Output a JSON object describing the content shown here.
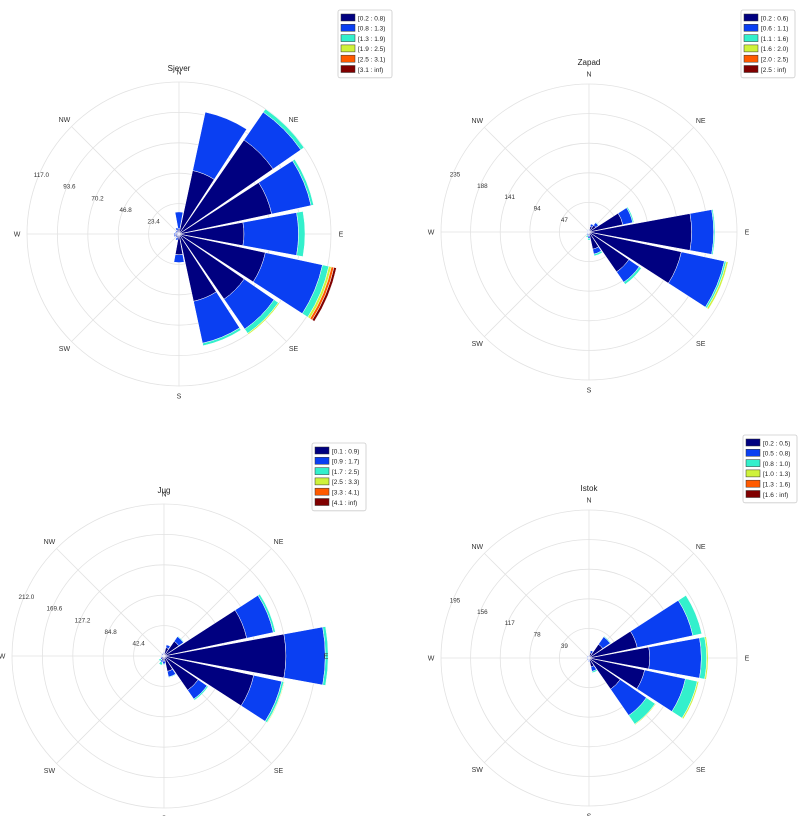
{
  "colors": {
    "bins": [
      "#000080",
      "#0a3ff2",
      "#33f0cc",
      "#cff23a",
      "#ff5a00",
      "#800000"
    ],
    "grid": "#e2e2e2"
  },
  "compass_labels": [
    "N",
    "NE",
    "E",
    "SE",
    "S",
    "SW",
    "W",
    "NW"
  ],
  "chart_data": [
    {
      "type": "windrose",
      "title": "Sjever",
      "direction_labels": [
        "N",
        "NE",
        "E",
        "SE",
        "S",
        "SW",
        "W",
        "NW"
      ],
      "radial_ticks": [
        "23.4",
        "46.8",
        "70.2",
        "93.6",
        "117.0"
      ],
      "rmax": 117.0,
      "legend": [
        "[0.2 : 0.8)",
        "[0.8 : 1.3)",
        "[1.3 : 1.9)",
        "[1.9 : 2.5)",
        "[2.5 : 3.1)",
        "[3.1 : inf)"
      ],
      "sector_count": 16,
      "sectors": [
        {
          "dir": 0,
          "values": [
            4,
            13,
            0,
            0,
            0,
            0
          ]
        },
        {
          "dir": 22.5,
          "values": [
            50,
            46,
            0,
            0,
            0,
            0
          ]
        },
        {
          "dir": 45,
          "values": [
            88,
            26,
            3,
            0,
            0,
            0
          ]
        },
        {
          "dir": 67.5,
          "values": [
            73,
            31,
            2,
            0,
            0,
            0
          ]
        },
        {
          "dir": 90,
          "values": [
            50,
            42,
            5,
            0,
            0,
            0
          ]
        },
        {
          "dir": 112.5,
          "values": [
            68,
            45,
            5,
            2,
            2,
            2
          ]
        },
        {
          "dir": 135,
          "values": [
            61,
            28,
            4,
            1,
            0,
            0
          ]
        },
        {
          "dir": 157.5,
          "values": [
            53,
            33,
            2,
            0,
            0,
            0
          ]
        },
        {
          "dir": 180,
          "values": [
            16,
            6,
            0,
            0,
            0,
            0
          ]
        },
        {
          "dir": 202.5,
          "values": [
            3,
            2,
            0,
            0,
            0,
            0
          ]
        },
        {
          "dir": 225,
          "values": [
            2,
            1,
            0,
            0,
            0,
            0
          ]
        },
        {
          "dir": 247.5,
          "values": [
            3,
            1,
            0,
            0,
            0,
            0
          ]
        },
        {
          "dir": 270,
          "values": [
            3,
            1,
            0,
            0,
            0,
            0
          ]
        },
        {
          "dir": 292.5,
          "values": [
            2,
            1,
            0,
            0,
            0,
            0
          ]
        },
        {
          "dir": 315,
          "values": [
            2,
            1,
            0,
            0,
            0,
            0
          ]
        },
        {
          "dir": 337.5,
          "values": [
            3,
            2,
            0,
            0,
            0,
            0
          ]
        }
      ]
    },
    {
      "type": "windrose",
      "title": "Zapad",
      "direction_labels": [
        "N",
        "NE",
        "E",
        "SE",
        "S",
        "SW",
        "W",
        "NW"
      ],
      "radial_ticks": [
        "47",
        "94",
        "141",
        "188",
        "235"
      ],
      "rmax": 235,
      "legend": [
        "[0.2 : 0.6)",
        "[0.6 : 1.1)",
        "[1.1 : 1.6)",
        "[1.6 : 2.0)",
        "[2.0 : 2.5)",
        "[2.5 : inf)"
      ],
      "sector_count": 16,
      "sectors": [
        {
          "dir": 0,
          "values": [
            3,
            1,
            0,
            0,
            0,
            0
          ]
        },
        {
          "dir": 22.5,
          "values": [
            9,
            4,
            0,
            0,
            0,
            0
          ]
        },
        {
          "dir": 45,
          "values": [
            13,
            5,
            1,
            0,
            0,
            0
          ]
        },
        {
          "dir": 67.5,
          "values": [
            55,
            16,
            2,
            0,
            0,
            0
          ]
        },
        {
          "dir": 90,
          "values": [
            163,
            35,
            2,
            0,
            0,
            0
          ]
        },
        {
          "dir": 112.5,
          "values": [
            150,
            70,
            3,
            3,
            0,
            0
          ]
        },
        {
          "dir": 135,
          "values": [
            77,
            20,
            4,
            0,
            0,
            0
          ]
        },
        {
          "dir": 157.5,
          "values": [
            28,
            8,
            3,
            0,
            0,
            0
          ]
        },
        {
          "dir": 180,
          "values": [
            6,
            4,
            3,
            0,
            0,
            0
          ]
        },
        {
          "dir": 202.5,
          "values": [
            3,
            3,
            3,
            0,
            0,
            0
          ]
        },
        {
          "dir": 225,
          "values": [
            2,
            2,
            0,
            0,
            0,
            0
          ]
        },
        {
          "dir": 247.5,
          "values": [
            2,
            1,
            0,
            0,
            0,
            0
          ]
        },
        {
          "dir": 270,
          "values": [
            3,
            1,
            0,
            0,
            0,
            0
          ]
        },
        {
          "dir": 292.5,
          "values": [
            2,
            1,
            0,
            0,
            0,
            0
          ]
        },
        {
          "dir": 315,
          "values": [
            3,
            1,
            0,
            0,
            0,
            0
          ]
        },
        {
          "dir": 337.5,
          "values": [
            3,
            1,
            0,
            0,
            0,
            0
          ]
        }
      ]
    },
    {
      "type": "windrose",
      "title": "Jug",
      "direction_labels": [
        "N",
        "NE",
        "E",
        "SE",
        "S",
        "SW",
        "W",
        "NW"
      ],
      "radial_ticks": [
        "42.4",
        "84.8",
        "127.2",
        "169.6",
        "212.0"
      ],
      "rmax": 212.0,
      "legend": [
        "[0.1 : 0.9)",
        "[0.9 : 1.7)",
        "[1.7 : 2.5)",
        "[2.5 : 3.3)",
        "[3.3 : 4.1)",
        "[4.1 : inf)"
      ],
      "sector_count": 16,
      "sectors": [
        {
          "dir": 0,
          "values": [
            3,
            2,
            0,
            0,
            0,
            0
          ]
        },
        {
          "dir": 22.5,
          "values": [
            12,
            4,
            0,
            0,
            0,
            0
          ]
        },
        {
          "dir": 45,
          "values": [
            25,
            8,
            1,
            0,
            0,
            0
          ]
        },
        {
          "dir": 67.5,
          "values": [
            118,
            38,
            3,
            0,
            0,
            0
          ]
        },
        {
          "dir": 90,
          "values": [
            170,
            55,
            4,
            0,
            0,
            0
          ]
        },
        {
          "dir": 112.5,
          "values": [
            128,
            40,
            3,
            1,
            0,
            0
          ]
        },
        {
          "dir": 135,
          "values": [
            58,
            15,
            2,
            0,
            0,
            0
          ]
        },
        {
          "dir": 157.5,
          "values": [
            22,
            8,
            1,
            0,
            0,
            0
          ]
        },
        {
          "dir": 180,
          "values": [
            7,
            4,
            1,
            0,
            0,
            0
          ]
        },
        {
          "dir": 202.5,
          "values": [
            6,
            3,
            4,
            0,
            0,
            0
          ]
        },
        {
          "dir": 225,
          "values": [
            4,
            2,
            3,
            0,
            0,
            0
          ]
        },
        {
          "dir": 247.5,
          "values": [
            3,
            2,
            0,
            0,
            0,
            0
          ]
        },
        {
          "dir": 270,
          "values": [
            3,
            1,
            0,
            0,
            0,
            0
          ]
        },
        {
          "dir": 292.5,
          "values": [
            3,
            1,
            0,
            0,
            0,
            0
          ]
        },
        {
          "dir": 315,
          "values": [
            3,
            1,
            0,
            0,
            0,
            0
          ]
        },
        {
          "dir": 337.5,
          "values": [
            3,
            1,
            0,
            0,
            0,
            0
          ]
        }
      ]
    },
    {
      "type": "windrose",
      "title": "Istok",
      "direction_labels": [
        "N",
        "NE",
        "E",
        "SE",
        "S",
        "SW",
        "W",
        "NW"
      ],
      "radial_ticks": [
        "39",
        "78",
        "117",
        "156",
        "195"
      ],
      "rmax": 195,
      "legend": [
        "[0.2 : 0.5)",
        "[0.5 : 0.8)",
        "[0.8 : 1.0)",
        "[1.0 : 1.3)",
        "[1.3 : 1.6)",
        "[1.6 : inf)"
      ],
      "sector_count": 16,
      "sectors": [
        {
          "dir": 0,
          "values": [
            2,
            1,
            0,
            0,
            0,
            0
          ]
        },
        {
          "dir": 22.5,
          "values": [
            7,
            3,
            0,
            0,
            0,
            0
          ]
        },
        {
          "dir": 45,
          "values": [
            22,
            12,
            1,
            0,
            0,
            0
          ]
        },
        {
          "dir": 67.5,
          "values": [
            65,
            75,
            12,
            0,
            0,
            0
          ]
        },
        {
          "dir": 90,
          "values": [
            80,
            68,
            7,
            2,
            0,
            0
          ]
        },
        {
          "dir": 112.5,
          "values": [
            75,
            55,
            16,
            2,
            0,
            0
          ]
        },
        {
          "dir": 135,
          "values": [
            50,
            42,
            14,
            1,
            0,
            0
          ]
        },
        {
          "dir": 157.5,
          "values": [
            12,
            6,
            2,
            0,
            0,
            0
          ]
        },
        {
          "dir": 180,
          "values": [
            3,
            2,
            0,
            0,
            0,
            0
          ]
        },
        {
          "dir": 202.5,
          "values": [
            2,
            1,
            0,
            0,
            0,
            0
          ]
        },
        {
          "dir": 225,
          "values": [
            2,
            1,
            0,
            0,
            0,
            0
          ]
        },
        {
          "dir": 247.5,
          "values": [
            2,
            1,
            0,
            0,
            0,
            0
          ]
        },
        {
          "dir": 270,
          "values": [
            2,
            1,
            0,
            0,
            0,
            0
          ]
        },
        {
          "dir": 292.5,
          "values": [
            2,
            1,
            0,
            0,
            0,
            0
          ]
        },
        {
          "dir": 315,
          "values": [
            2,
            1,
            0,
            0,
            0,
            0
          ]
        },
        {
          "dir": 337.5,
          "values": [
            2,
            1,
            0,
            0,
            0,
            0
          ]
        }
      ]
    }
  ]
}
